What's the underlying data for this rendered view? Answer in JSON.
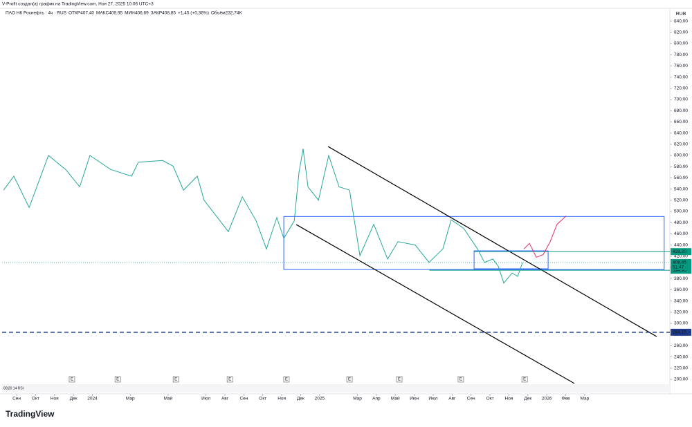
{
  "header": {
    "credit": "V-Profit создал(а) график на TradingView.com, Ноя 27, 2025 10:06 UTC+3",
    "symbol": "ПАО НК Роснефть · 4ч · RUS",
    "fields": [
      [
        "ОТКР",
        "407,40"
      ],
      [
        "МАКС",
        "409,95"
      ],
      [
        "МИН",
        "406,69"
      ],
      [
        "ЗАКР",
        "408,85"
      ]
    ],
    "change": "+1,45 (+0,36%)",
    "volume_label": "Объём",
    "volume": "232,74K"
  },
  "footer": {
    "logo": "TradingView"
  },
  "chart_data": {
    "type": "line",
    "currency": "RUB",
    "grid": false,
    "ylim": [
      174.1,
      863
    ],
    "xlim": [
      -0.77,
      34.5
    ],
    "yticks": [
      {
        "value": 200,
        "label": "200,00"
      },
      {
        "value": 220,
        "label": "220,00"
      },
      {
        "value": 240,
        "label": "240,00"
      },
      {
        "value": 260,
        "label": "260,00"
      },
      {
        "value": 280,
        "label": "280,00"
      },
      {
        "value": 300,
        "label": "300,00"
      },
      {
        "value": 320,
        "label": "320,00"
      },
      {
        "value": 340,
        "label": "340,00"
      },
      {
        "value": 360,
        "label": "360,00"
      },
      {
        "value": 380,
        "label": "380,00"
      },
      {
        "value": 400,
        "label": "400,00"
      },
      {
        "value": 420,
        "label": "420,00"
      },
      {
        "value": 440,
        "label": "440,00"
      },
      {
        "value": 460,
        "label": "460,00"
      },
      {
        "value": 480,
        "label": "480,00"
      },
      {
        "value": 500,
        "label": "500,00"
      },
      {
        "value": 520,
        "label": "520,00"
      },
      {
        "value": 540,
        "label": "540,00"
      },
      {
        "value": 560,
        "label": "560,00"
      },
      {
        "value": 580,
        "label": "580,00"
      },
      {
        "value": 600,
        "label": "600,00"
      },
      {
        "value": 620,
        "label": "620,00"
      },
      {
        "value": 640,
        "label": "640,00"
      },
      {
        "value": 660,
        "label": "660,00"
      },
      {
        "value": 680,
        "label": "680,00"
      },
      {
        "value": 700,
        "label": "700,00"
      },
      {
        "value": 720,
        "label": "720,00"
      },
      {
        "value": 740,
        "label": "740,00"
      },
      {
        "value": 760,
        "label": "760,00"
      },
      {
        "value": 780,
        "label": "780,00"
      },
      {
        "value": 800,
        "label": "800,00"
      },
      {
        "value": 820,
        "label": "820,00"
      },
      {
        "value": 840,
        "label": "840,00"
      }
    ],
    "xticks": [
      {
        "value": 0,
        "label": "Сен"
      },
      {
        "value": 1,
        "label": "Окт"
      },
      {
        "value": 2,
        "label": "Ноя"
      },
      {
        "value": 3,
        "label": "Дек"
      },
      {
        "value": 4,
        "label": "2024"
      },
      {
        "value": 6,
        "label": "Мар"
      },
      {
        "value": 8,
        "label": "Май"
      },
      {
        "value": 10,
        "label": "Июл"
      },
      {
        "value": 11,
        "label": "Авг"
      },
      {
        "value": 12,
        "label": "Сен"
      },
      {
        "value": 13,
        "label": "Окт"
      },
      {
        "value": 14,
        "label": "Ноя"
      },
      {
        "value": 15,
        "label": "Дек"
      },
      {
        "value": 16,
        "label": "2025"
      },
      {
        "value": 18,
        "label": "Мар"
      },
      {
        "value": 19,
        "label": "Апр"
      },
      {
        "value": 20,
        "label": "Май"
      },
      {
        "value": 21,
        "label": "Июн"
      },
      {
        "value": 22,
        "label": "Июл"
      },
      {
        "value": 23,
        "label": "Авг"
      },
      {
        "value": 24,
        "label": "Сен"
      },
      {
        "value": 25,
        "label": "Окт"
      },
      {
        "value": 26,
        "label": "Ноя"
      },
      {
        "value": 27,
        "label": "Дек"
      },
      {
        "value": 28,
        "label": "2026"
      },
      {
        "value": 29,
        "label": "Фев"
      },
      {
        "value": 30,
        "label": "Мар"
      }
    ],
    "series": [
      {
        "color": "#26a69a",
        "x": [
          -0.69,
          -0.15,
          0.66,
          1.68,
          2.59,
          3.33,
          3.87,
          4.97,
          6.07,
          6.43,
          7.71,
          8.26,
          8.81,
          9.54,
          9.9,
          11.18,
          11.92,
          12.65,
          13.19,
          13.74,
          14.11,
          14.66,
          14.91,
          15.13,
          15.39,
          15.94,
          16.48,
          17.03,
          17.58,
          18.13,
          18.86,
          19.59,
          20.14,
          21.05,
          21.78,
          22.51,
          22.95,
          23.61,
          24.34,
          24.71,
          25.15,
          25.44,
          25.73,
          26.17,
          26.46,
          26.72
        ],
        "values": [
          538,
          563,
          507,
          600,
          575,
          544,
          600,
          575,
          563,
          588,
          591,
          581,
          538,
          563,
          520,
          464,
          526,
          483,
          433,
          489,
          452,
          483,
          569,
          612,
          544,
          520,
          600,
          544,
          538,
          421,
          477,
          415,
          446,
          440,
          409,
          433,
          485,
          470,
          433,
          409,
          415,
          402,
          372,
          390,
          384,
          408.85
        ]
      },
      {
        "color": "#e0306a",
        "x": [
          26.79,
          27.08,
          27.45,
          27.81,
          28.18,
          28.54,
          29.02
        ],
        "values": [
          433,
          443,
          418,
          423,
          446,
          477,
          492
        ]
      }
    ],
    "rectangles": [
      {
        "x": [
          14.11,
          34.2
        ],
        "y": [
          396.3,
          491
        ],
        "color": "#2962ff"
      },
      {
        "x": [
          24.16,
          28.07
        ],
        "y": [
          397.5,
          429.6
        ],
        "color": "#2962ff"
      }
    ],
    "trendlines": [
      {
        "x": [
          16.45,
          33.8
        ],
        "y": [
          616,
          276.5
        ]
      },
      {
        "x": [
          14.77,
          29.46
        ],
        "y": [
          476.5,
          192.6
        ]
      }
    ],
    "levels": [
      {
        "value": 428.2,
        "label": "428,20",
        "color": "#089981",
        "from": 24.16,
        "dash": false
      },
      {
        "value": 394.9,
        "label": "394,90",
        "color": "#089981",
        "from": 21.8,
        "dash": false
      },
      {
        "value": 284.15,
        "label": "284,15",
        "color": "#1e3a8a",
        "from": -0.77,
        "dash": true
      }
    ],
    "last_price": {
      "value": 408.85,
      "label": "408,85",
      "timer": "51:47",
      "color": "#089981"
    },
    "events": [
      {
        "x": 2.92,
        "label": "E"
      },
      {
        "x": 5.34,
        "label": "E"
      },
      {
        "x": 8.41,
        "label": "E"
      },
      {
        "x": 11.26,
        "label": "E"
      },
      {
        "x": 14.25,
        "label": "E"
      },
      {
        "x": 17.58,
        "label": "E"
      },
      {
        "x": 20.21,
        "label": "E"
      },
      {
        "x": 23.46,
        "label": "E"
      },
      {
        "x": 26.83,
        "label": "E"
      }
    ],
    "indicator_label": "80|20 14 RSI"
  }
}
